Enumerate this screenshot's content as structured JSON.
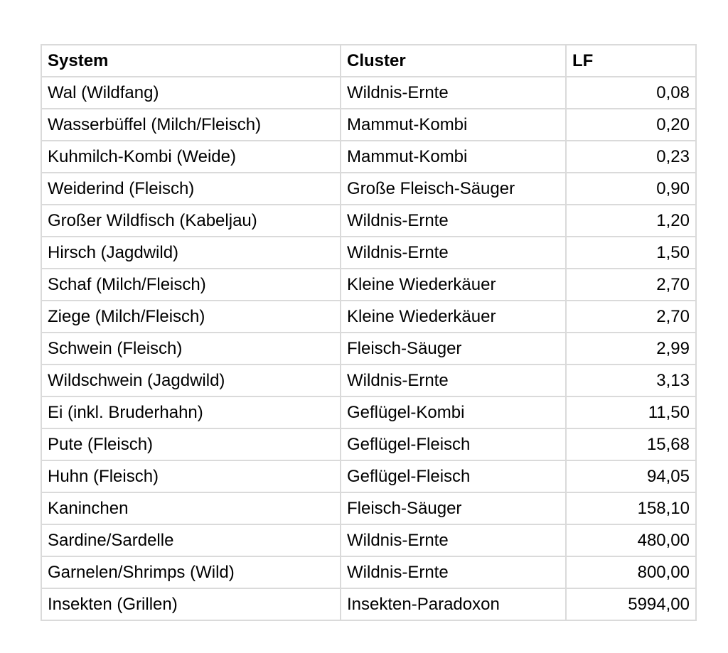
{
  "table": {
    "headers": [
      "System",
      "Cluster",
      "LF"
    ],
    "rows": [
      [
        "Wal (Wildfang)",
        "Wildnis-Ernte",
        "0,08"
      ],
      [
        "Wasserbüffel (Milch/Fleisch)",
        "Mammut-Kombi",
        "0,20"
      ],
      [
        "Kuhmilch-Kombi (Weide)",
        "Mammut-Kombi",
        "0,23"
      ],
      [
        "Weiderind (Fleisch)",
        "Große Fleisch-Säuger",
        "0,90"
      ],
      [
        "Großer Wildfisch (Kabeljau)",
        "Wildnis-Ernte",
        "1,20"
      ],
      [
        "Hirsch (Jagdwild)",
        "Wildnis-Ernte",
        "1,50"
      ],
      [
        "Schaf (Milch/Fleisch)",
        "Kleine Wiederkäuer",
        "2,70"
      ],
      [
        "Ziege (Milch/Fleisch)",
        "Kleine Wiederkäuer",
        "2,70"
      ],
      [
        "Schwein (Fleisch)",
        "Fleisch-Säuger",
        "2,99"
      ],
      [
        "Wildschwein (Jagdwild)",
        "Wildnis-Ernte",
        "3,13"
      ],
      [
        "Ei (inkl. Bruderhahn)",
        "Geflügel-Kombi",
        "11,50"
      ],
      [
        "Pute (Fleisch)",
        "Geflügel-Fleisch",
        "15,68"
      ],
      [
        "Huhn (Fleisch)",
        "Geflügel-Fleisch",
        "94,05"
      ],
      [
        "Kaninchen",
        "Fleisch-Säuger",
        "158,10"
      ],
      [
        "Sardine/Sardelle",
        "Wildnis-Ernte",
        "480,00"
      ],
      [
        "Garnelen/Shrimps (Wild)",
        "Wildnis-Ernte",
        "800,00"
      ],
      [
        "Insekten (Grillen)",
        "Insekten-Paradoxon",
        "5994,00"
      ]
    ]
  }
}
